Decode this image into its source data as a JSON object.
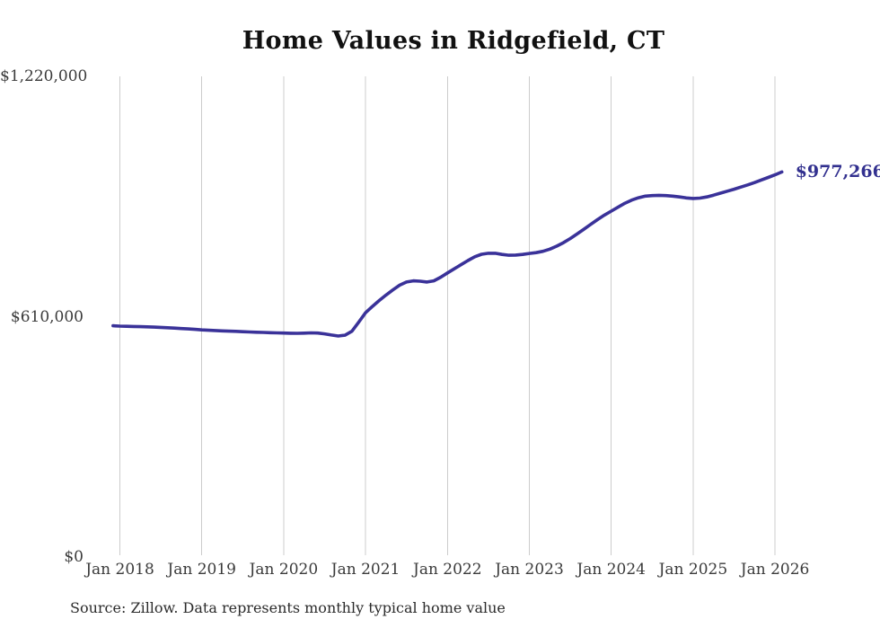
{
  "chart_data": {
    "type": "line",
    "title": "Home Values in Ridgefield, CT",
    "source_note": "Source: Zillow. Data represents monthly typical home value",
    "last_point_label": "$977,266",
    "last_point_value": 977266,
    "ylim": [
      0,
      1220000
    ],
    "grid": "vertical-only",
    "legend": "none",
    "line_color": "#3a3299",
    "label_color": "#32308f",
    "grid_color": "#cccccc",
    "tick_color": "#3a3a3a",
    "yticks": [
      {
        "label": "$0",
        "value": 0
      },
      {
        "label": "$610,000",
        "value": 610000
      },
      {
        "label": "$1,220,000",
        "value": 1220000
      }
    ],
    "xticks": [
      {
        "label": "Jan 2018",
        "month_index": 0
      },
      {
        "label": "Jan 2019",
        "month_index": 12
      },
      {
        "label": "Jan 2020",
        "month_index": 24
      },
      {
        "label": "Jan 2021",
        "month_index": 36
      },
      {
        "label": "Jan 2022",
        "month_index": 48
      },
      {
        "label": "Jan 2023",
        "month_index": 60
      },
      {
        "label": "Jan 2024",
        "month_index": 72
      },
      {
        "label": "Jan 2025",
        "month_index": 84
      },
      {
        "label": "Jan 2026",
        "month_index": 96
      }
    ],
    "series": [
      {
        "name": "Monthly typical home value",
        "months": [
          "2017-12",
          "2018-01",
          "2018-02",
          "2018-03",
          "2018-04",
          "2018-05",
          "2018-06",
          "2018-07",
          "2018-08",
          "2018-09",
          "2018-10",
          "2018-11",
          "2018-12",
          "2019-01",
          "2019-02",
          "2019-03",
          "2019-04",
          "2019-05",
          "2019-06",
          "2019-07",
          "2019-08",
          "2019-09",
          "2019-10",
          "2019-11",
          "2019-12",
          "2020-01",
          "2020-02",
          "2020-03",
          "2020-04",
          "2020-05",
          "2020-06",
          "2020-07",
          "2020-08",
          "2020-09",
          "2020-10",
          "2020-11",
          "2020-12",
          "2021-01",
          "2021-02",
          "2021-03",
          "2021-04",
          "2021-05",
          "2021-06",
          "2021-07",
          "2021-08",
          "2021-09",
          "2021-10",
          "2021-11",
          "2021-12",
          "2022-01",
          "2022-02",
          "2022-03",
          "2022-04",
          "2022-05",
          "2022-06",
          "2022-07",
          "2022-08",
          "2022-09",
          "2022-10",
          "2022-11",
          "2022-12",
          "2023-01",
          "2023-02",
          "2023-03",
          "2023-04",
          "2023-05",
          "2023-06",
          "2023-07",
          "2023-08",
          "2023-09",
          "2023-10",
          "2023-11",
          "2023-12",
          "2024-01",
          "2024-02",
          "2024-03",
          "2024-04",
          "2024-05",
          "2024-06",
          "2024-07",
          "2024-08",
          "2024-09",
          "2024-10",
          "2024-11",
          "2024-12",
          "2025-01",
          "2025-02",
          "2025-03",
          "2025-04",
          "2025-05",
          "2025-06",
          "2025-07",
          "2025-08",
          "2025-09",
          "2025-10",
          "2025-11",
          "2025-12",
          "2026-01",
          "2026-02"
        ],
        "values": [
          587000,
          586000,
          585600,
          585200,
          584800,
          584200,
          583500,
          582800,
          582000,
          581000,
          580000,
          579000,
          577800,
          576500,
          575500,
          574800,
          574000,
          573400,
          572800,
          572000,
          571200,
          570500,
          570000,
          569500,
          569000,
          568500,
          568000,
          567800,
          568200,
          569000,
          568500,
          566500,
          563500,
          561000,
          563000,
          573000,
          596000,
          620000,
          636000,
          651000,
          665000,
          678000,
          690000,
          698000,
          701000,
          700000,
          698000,
          701000,
          710000,
          721000,
          731500,
          742000,
          752500,
          762000,
          768500,
          771000,
          771000,
          768000,
          766000,
          766500,
          768000,
          770500,
          772500,
          776000,
          781500,
          789000,
          798000,
          808500,
          820000,
          832000,
          844500,
          856500,
          868000,
          878000,
          888000,
          898000,
          906000,
          912000,
          916000,
          917500,
          918000,
          917500,
          916000,
          914000,
          911500,
          910000,
          911000,
          914000,
          918500,
          923500,
          928500,
          933500,
          939000,
          944500,
          950500,
          957000,
          963500,
          970000,
          977266
        ]
      }
    ]
  }
}
